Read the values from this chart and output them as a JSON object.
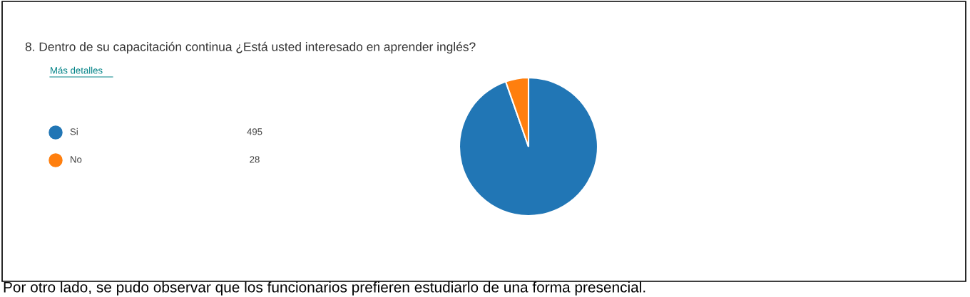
{
  "chart_data": {
    "type": "pie",
    "title": "8. Dentro de su capacitación continua ¿Está usted interesado en aprender inglés?",
    "categories": [
      "Si",
      "No"
    ],
    "values": [
      495,
      28
    ],
    "colors": [
      "#2176b5",
      "#ff7f0e"
    ],
    "data_labels": true,
    "legend": "left",
    "annotations": [
      "Más detalles",
      "Por otro lado, se pudo observar que los funcionarios prefieren estudiarlo de una forma presencial."
    ]
  }
}
